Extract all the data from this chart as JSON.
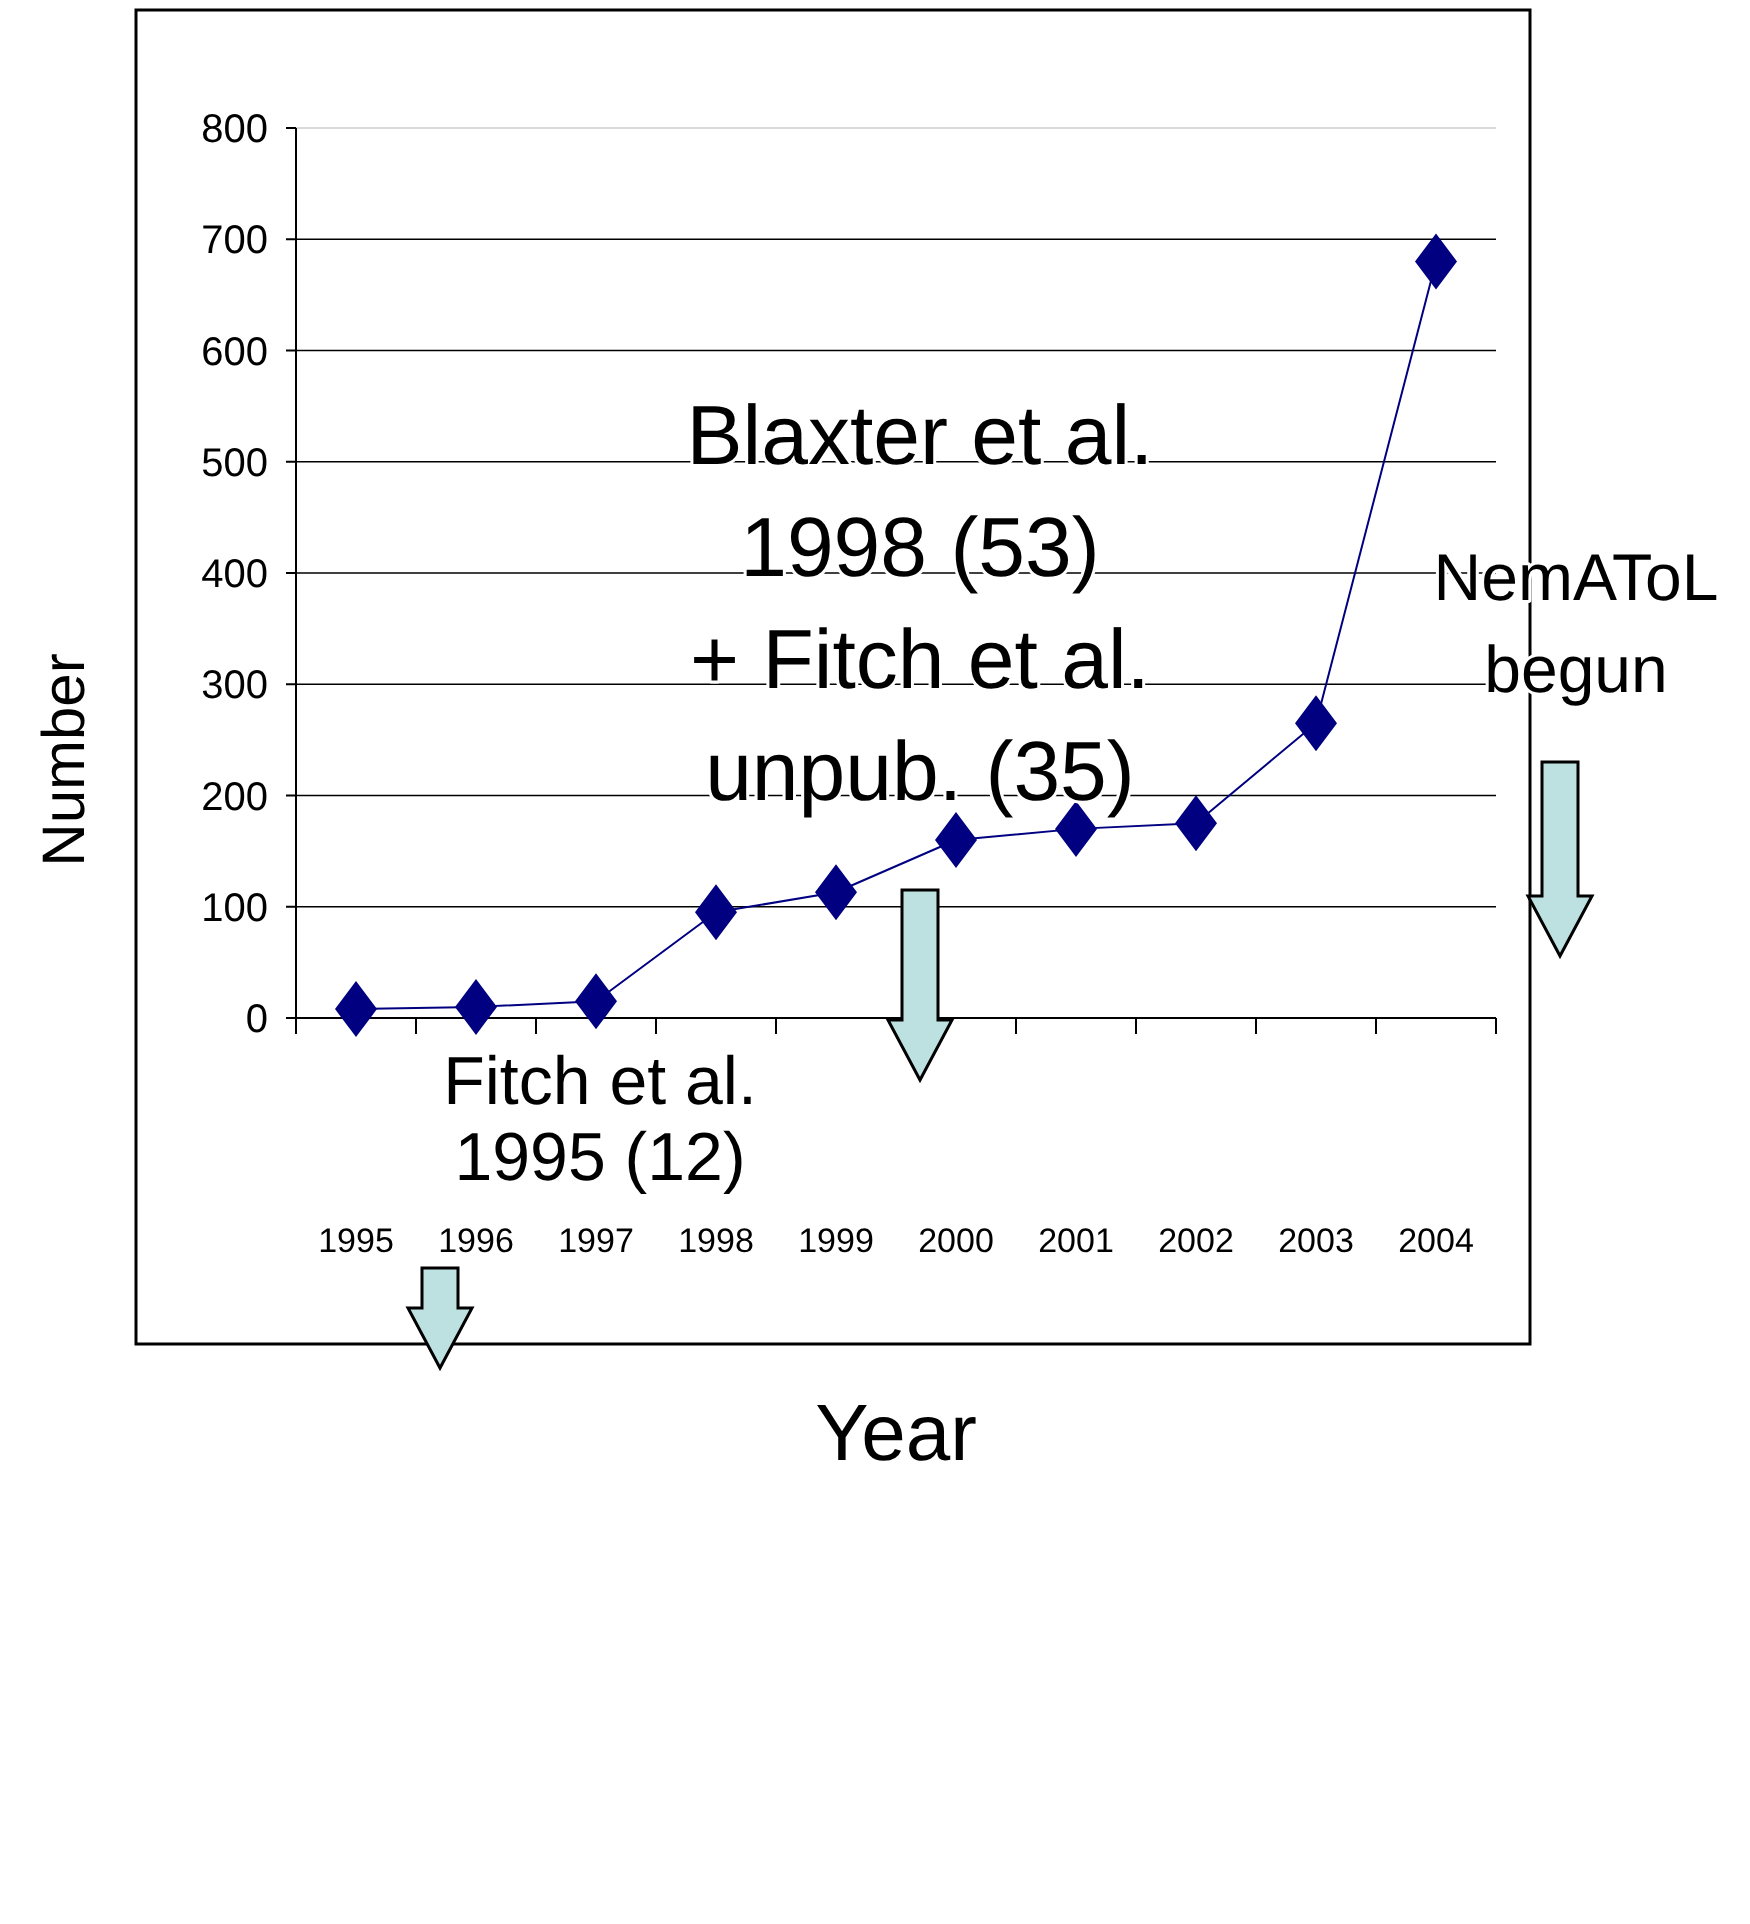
{
  "chart_data": {
    "type": "line",
    "xlabel": "Year",
    "ylabel": "Number",
    "categories": [
      "1995",
      "1996",
      "1997",
      "1998",
      "1999",
      "2000",
      "2001",
      "2002",
      "2003",
      "2004"
    ],
    "series": [
      {
        "color": "#000080",
        "values": [
          8,
          10,
          15,
          95,
          113,
          160,
          170,
          175,
          265,
          680
        ]
      }
    ],
    "ylim": [
      0,
      800
    ],
    "yticks": [
      0,
      100,
      200,
      300,
      400,
      500,
      600,
      700,
      800
    ],
    "grid": "y",
    "marker": "diamond",
    "line_style": "solid",
    "annotations": [
      "Fitch et al.\n1995 (12)",
      "Blaxter et al.\n1998 (53)\n+ Fitch et al.\nunpub. (35)",
      "NemAToL\nbegun"
    ]
  }
}
